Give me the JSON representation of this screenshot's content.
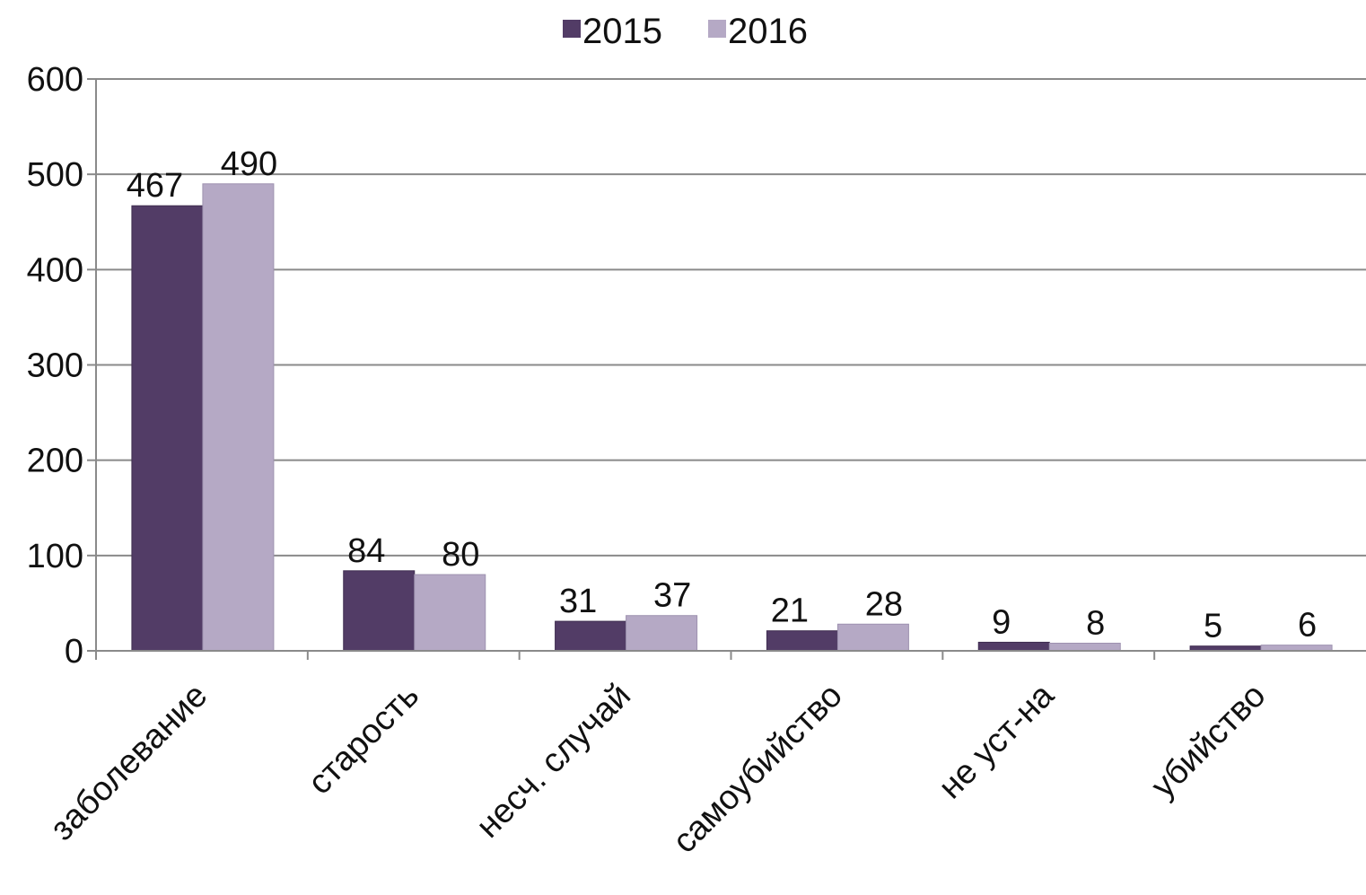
{
  "chart_data": {
    "type": "bar",
    "title": "",
    "xlabel": "",
    "ylabel": "",
    "categories": [
      "заболевание",
      "старость",
      "несч. случай",
      "самоубийство",
      "не уст-на",
      "убийство"
    ],
    "series": [
      {
        "name": "2015",
        "color": "#523c66",
        "values": [
          467,
          84,
          31,
          21,
          9,
          5
        ]
      },
      {
        "name": "2016",
        "color": "#b5a9c5",
        "values": [
          490,
          80,
          37,
          28,
          8,
          6
        ]
      }
    ],
    "ylim": [
      0,
      600
    ],
    "yticks": [
      "0",
      "100",
      "200",
      "300",
      "400",
      "500",
      "600"
    ],
    "grid": true,
    "legend_position": "top-center",
    "data_labels": true
  }
}
